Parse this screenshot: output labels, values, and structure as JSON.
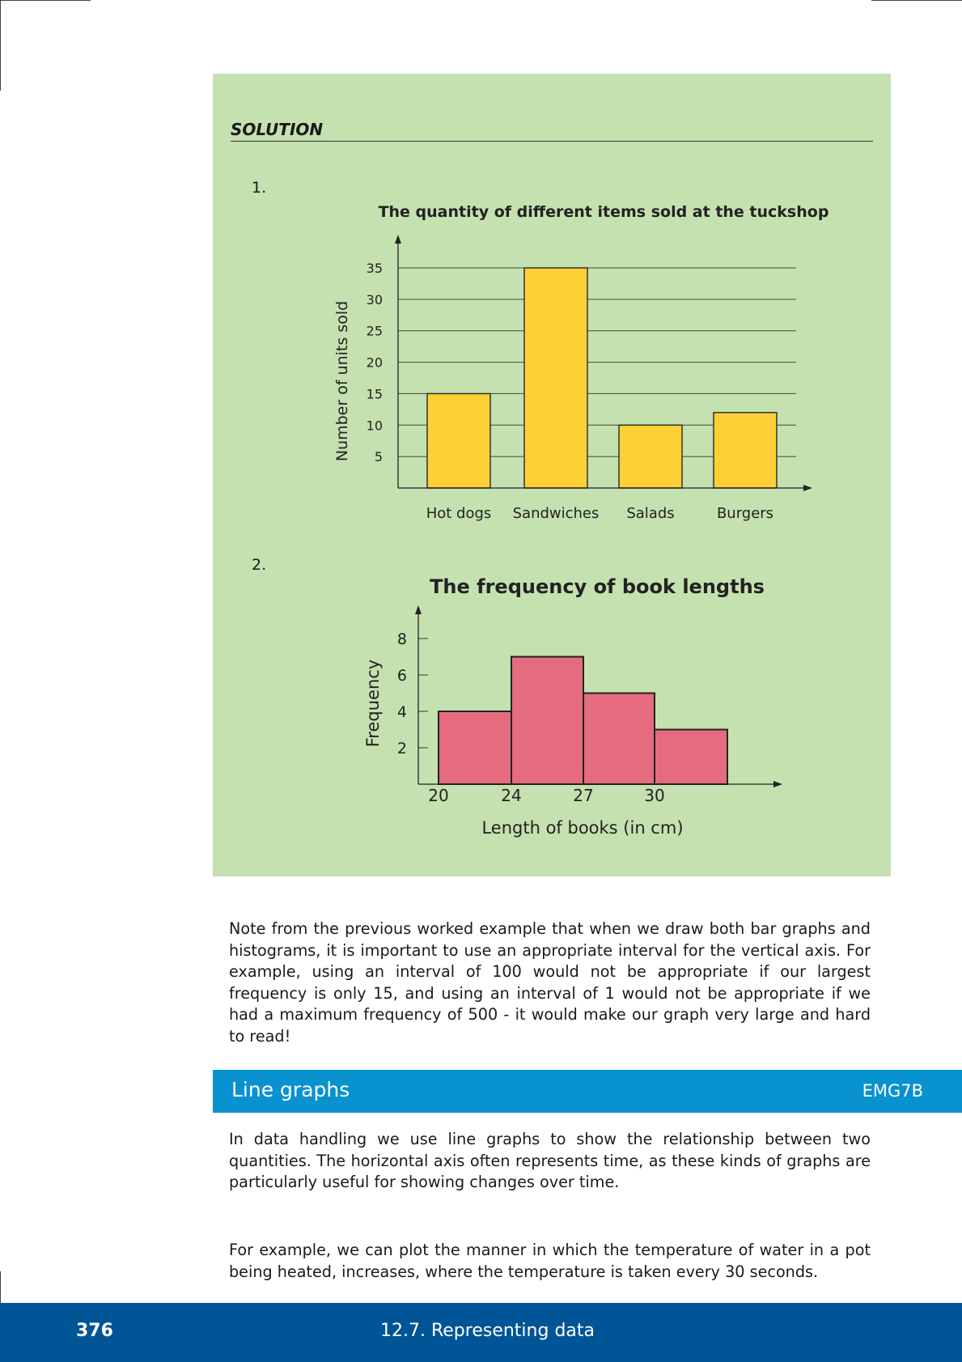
{
  "solution": {
    "heading": "SOLUTION",
    "item1_number": "1.",
    "item2_number": "2."
  },
  "chart_data": [
    {
      "type": "bar",
      "title": "The quantity of different items sold at the tuckshop",
      "xlabel": "",
      "ylabel": "Number of units sold",
      "categories": [
        "Hot dogs",
        "Sandwiches",
        "Salads",
        "Burgers"
      ],
      "values": [
        15,
        35,
        10,
        12
      ],
      "yticks": [
        5,
        10,
        15,
        20,
        25,
        30,
        35
      ],
      "ylim": [
        0,
        35
      ],
      "grid": true,
      "bar_color": "#fdd036"
    },
    {
      "type": "bar",
      "title": "The frequency of book lengths",
      "xlabel": "Length of books (in cm)",
      "ylabel": "Frequency",
      "bins": [
        [
          20,
          24
        ],
        [
          24,
          27
        ],
        [
          27,
          30
        ],
        [
          30,
          33
        ]
      ],
      "values": [
        4,
        7,
        5,
        3
      ],
      "xtick_labels": [
        "20",
        "24",
        "27",
        "30"
      ],
      "yticks": [
        2,
        4,
        6,
        8
      ],
      "ylim": [
        0,
        8
      ],
      "grid": false,
      "bar_color": "#e56b7e"
    }
  ],
  "paragraphs": {
    "note": "Note from the previous worked example that when we draw both bar graphs and histograms, it is important to use an appropriate interval for the vertical axis.  For example, using an interval of 100 would not be appropriate if our largest frequency is only 15, and using an interval of 1 would not be appropriate if we had a maximum frequency of 500 - it would make our graph very large and hard to read!",
    "line_graphs_intro": "In data handling we use line graphs to show the relationship between two quantities. The horizontal axis often represents time, as these kinds of graphs are particularly useful for showing changes over time.",
    "example": "For example, we can plot the manner in which the temperature of water in a pot being heated, increases, where the temperature is taken every 30 seconds."
  },
  "section": {
    "title": "Line graphs",
    "code": "EMG7B"
  },
  "footer": {
    "page_number": "376",
    "chapter": "12.7.   Representing data"
  },
  "colors": {
    "solution_background": "#c5e1b0",
    "section_bar": "#0892d0",
    "footer": "#005596"
  }
}
